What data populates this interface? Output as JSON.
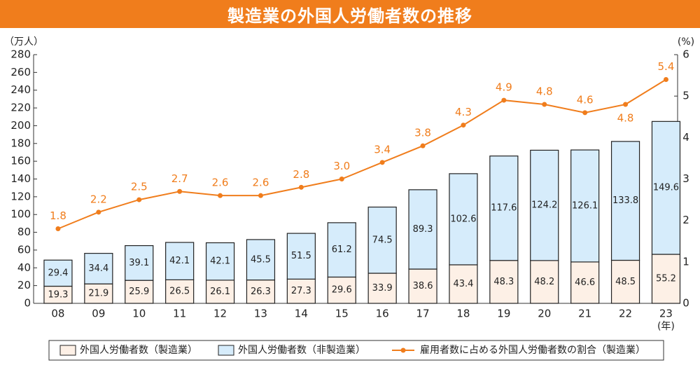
{
  "title": "製造業の外国人労働者数の推移",
  "chart_data": {
    "type": "bar",
    "stacked": true,
    "title": "製造業の外国人労働者数の推移",
    "categories": [
      "08",
      "09",
      "10",
      "11",
      "12",
      "13",
      "14",
      "15",
      "16",
      "17",
      "18",
      "19",
      "20",
      "21",
      "22",
      "23"
    ],
    "x_unit": "(年)",
    "y_left": {
      "unit": "（万人）",
      "min": 0,
      "max": 280,
      "step": 20
    },
    "y_right": {
      "unit": "(%)",
      "min": 0,
      "max": 6,
      "step": 1
    },
    "series": [
      {
        "name": "外国人労働者数（製造業）",
        "type": "bar",
        "axis": "left",
        "color": "#fdf0e6",
        "values": [
          19.3,
          21.9,
          25.9,
          26.5,
          26.1,
          26.3,
          27.3,
          29.6,
          33.9,
          38.6,
          43.4,
          48.3,
          48.2,
          46.6,
          48.5,
          55.2
        ]
      },
      {
        "name": "外国人労働者数（非製造業）",
        "type": "bar",
        "axis": "left",
        "color": "#d6ecfb",
        "values": [
          29.4,
          34.4,
          39.1,
          42.1,
          42.1,
          45.5,
          51.5,
          61.2,
          74.5,
          89.3,
          102.6,
          117.6,
          124.2,
          126.1,
          133.8,
          149.6
        ]
      },
      {
        "name": "雇用者数に占める外国人労働者数の割合（製造業）",
        "type": "line",
        "axis": "right",
        "color": "#f07d1c",
        "values": [
          1.8,
          2.2,
          2.5,
          2.7,
          2.6,
          2.6,
          2.8,
          3.0,
          3.4,
          3.8,
          4.3,
          4.9,
          4.8,
          4.6,
          4.8,
          5.4
        ]
      }
    ],
    "legend_position": "bottom",
    "grid": false
  }
}
